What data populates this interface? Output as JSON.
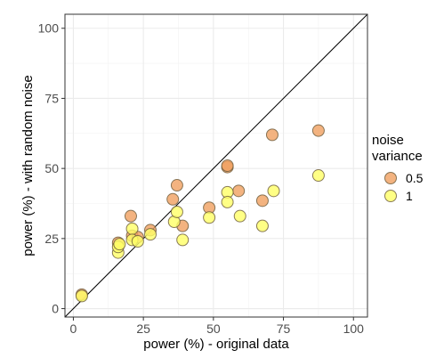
{
  "chart_data": {
    "type": "scatter",
    "xlabel": "power (%) - original data",
    "ylabel": "power (%) - with random noise",
    "xlim": [
      -3,
      105
    ],
    "ylim": [
      -3,
      105
    ],
    "x_ticks": [
      0,
      25,
      50,
      75,
      100
    ],
    "y_ticks": [
      0,
      25,
      50,
      75,
      100
    ],
    "grid": true,
    "reference_line": {
      "type": "identity",
      "slope": 1,
      "intercept": 0
    },
    "legend": {
      "title_line1": "noise",
      "title_line2": "variance",
      "position": "right"
    },
    "series": [
      {
        "name": "0.5",
        "color": "#f0a060",
        "points": [
          [
            3,
            5
          ],
          [
            16,
            23.5
          ],
          [
            20.5,
            33
          ],
          [
            21,
            26
          ],
          [
            23,
            25.5
          ],
          [
            27.5,
            28
          ],
          [
            35.5,
            39
          ],
          [
            37,
            44
          ],
          [
            39,
            29.5
          ],
          [
            48.5,
            36
          ],
          [
            55,
            50.5
          ],
          [
            55,
            51
          ],
          [
            59,
            42
          ],
          [
            67.5,
            38.5
          ],
          [
            71,
            62
          ],
          [
            87.5,
            63.5
          ]
        ]
      },
      {
        "name": "1",
        "color": "#ffff66",
        "points": [
          [
            3,
            4.5
          ],
          [
            16,
            20
          ],
          [
            16,
            22
          ],
          [
            16.5,
            23
          ],
          [
            21,
            28.5
          ],
          [
            21,
            24.5
          ],
          [
            23,
            24
          ],
          [
            27.5,
            26.5
          ],
          [
            36,
            31
          ],
          [
            37,
            34.5
          ],
          [
            39,
            24.5
          ],
          [
            48.5,
            32.5
          ],
          [
            55,
            41.5
          ],
          [
            55,
            38
          ],
          [
            59.5,
            33
          ],
          [
            67.5,
            29.5
          ],
          [
            71.5,
            42
          ],
          [
            87.5,
            47.5
          ]
        ]
      }
    ]
  }
}
